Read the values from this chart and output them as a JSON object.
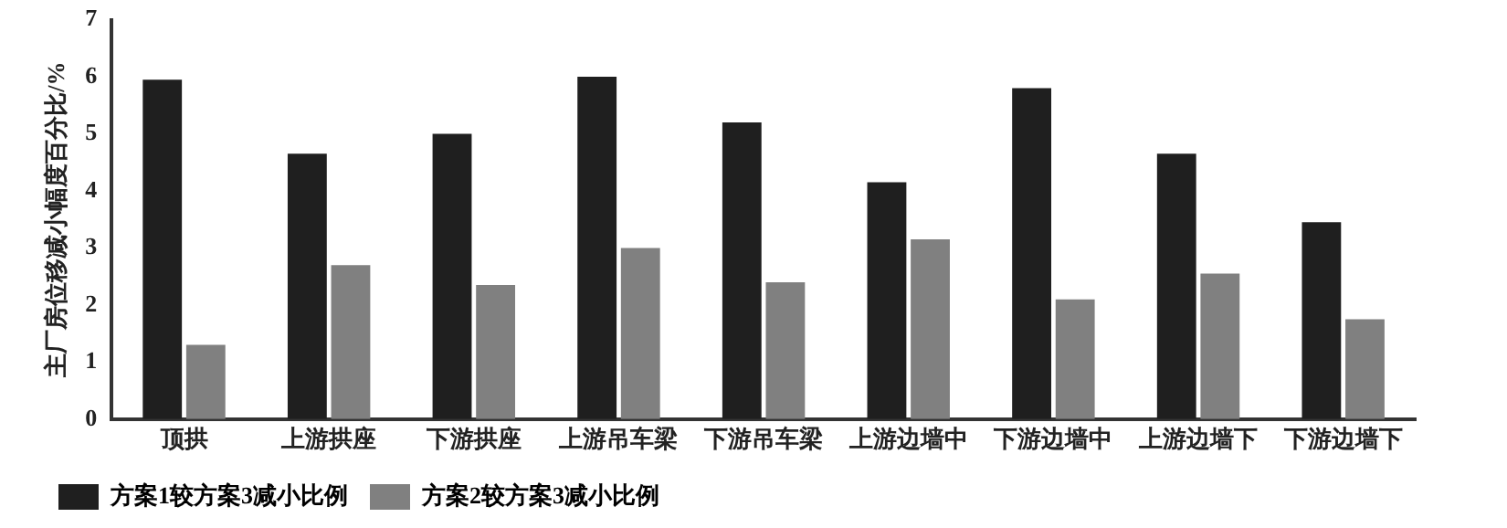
{
  "chart_data": {
    "type": "bar",
    "ylabel": "主厂房位移减小幅度百分比/%",
    "categories": [
      "顶拱",
      "上游拱座",
      "下游拱座",
      "上游吊车梁",
      "下游吊车梁",
      "上游边墙中",
      "下游边墙中",
      "上游边墙下",
      "下游边墙下"
    ],
    "series": [
      {
        "name": "方案1较方案3减小比例",
        "color": "#1f1f1f",
        "values": [
          5.95,
          4.65,
          5.0,
          6.0,
          5.2,
          4.15,
          5.8,
          4.65,
          3.45
        ]
      },
      {
        "name": "方案2较方案3减小比例",
        "color": "#808080",
        "values": [
          1.3,
          2.7,
          2.35,
          3.0,
          2.4,
          3.15,
          2.1,
          2.55,
          1.75
        ]
      }
    ],
    "ylim": [
      0,
      7
    ],
    "yticks": [
      0,
      1,
      2,
      3,
      4,
      5,
      6,
      7
    ],
    "grid": false,
    "legend": "bottom left"
  }
}
